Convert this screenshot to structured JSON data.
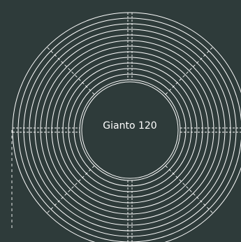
{
  "product": {
    "name": "Gianto 120"
  },
  "colors": {
    "background": "#2e3b3a",
    "line": "#ffffff"
  }
}
